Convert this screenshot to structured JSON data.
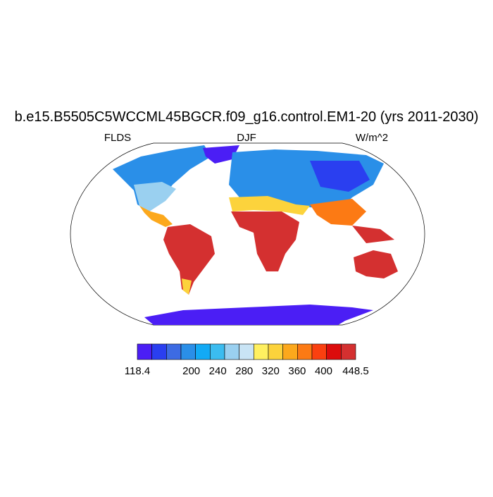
{
  "title": "b.e15.B5505C5WCCML45BGCR.f09_g16.control.EM1-20 (yrs 2011-2030)",
  "left_label": "FLDS",
  "center_label": "DJF",
  "right_label": "W/m^2",
  "colorbar": {
    "range": [
      118.4,
      448.5
    ],
    "ticks": [
      118.4,
      200,
      240,
      280,
      320,
      360,
      400,
      448.5
    ],
    "colors": [
      "#4b1ef5",
      "#2a3ff0",
      "#3d6be3",
      "#2a8fe8",
      "#12aaf5",
      "#3bbcf0",
      "#9ad0f0",
      "#c9e4f5",
      "#fff060",
      "#fcd33c",
      "#fca81c",
      "#fc7a14",
      "#fa4010",
      "#dc0c0c",
      "#d43030"
    ]
  }
}
